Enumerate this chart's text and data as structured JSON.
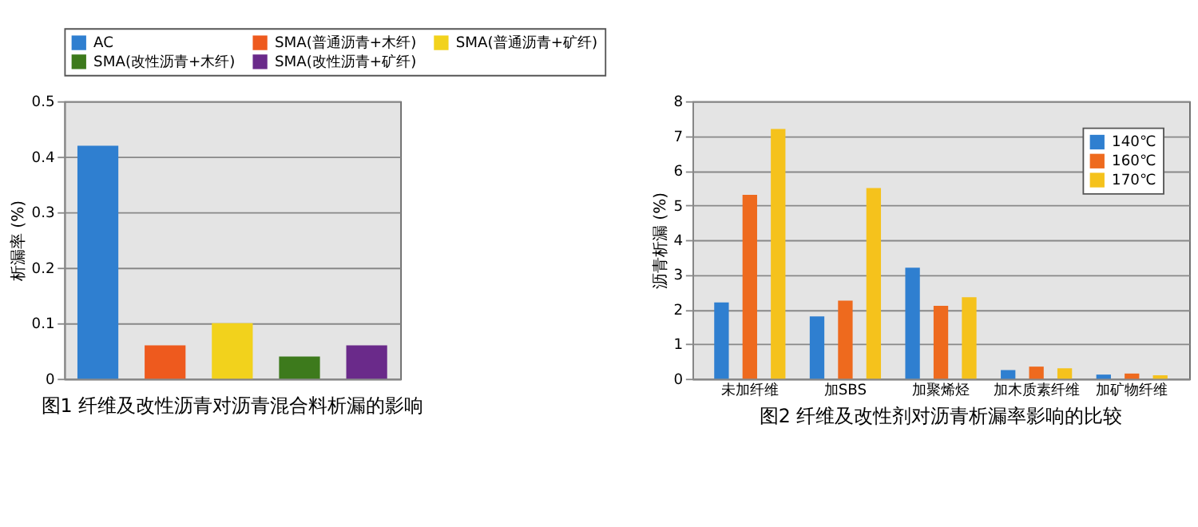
{
  "chart_data": [
    {
      "type": "bar",
      "ylabel": "析漏率 (%)",
      "categories": [
        null,
        null,
        null,
        null,
        null
      ],
      "series": [
        {
          "name": "AC",
          "color": "#2f7fd0",
          "values": [
            0.42,
            null,
            null,
            null,
            null
          ]
        },
        {
          "name": "SMA(普通沥青+木纤)",
          "color": "#ee5a1e",
          "values": [
            null,
            0.06,
            null,
            null,
            null
          ]
        },
        {
          "name": "SMA(普通沥青+矿纤)",
          "color": "#f2d21c",
          "values": [
            null,
            null,
            0.1,
            null,
            null
          ]
        },
        {
          "name": "SMA(改性沥青+木纤)",
          "color": "#3d7a1c",
          "values": [
            null,
            null,
            null,
            0.04,
            null
          ]
        },
        {
          "name": "SMA(改性沥青+矿纤)",
          "color": "#6a2a8a",
          "values": [
            null,
            null,
            null,
            null,
            0.06
          ]
        }
      ],
      "ylim": [
        0,
        0.5
      ],
      "yticks": [
        0,
        0.1,
        0.2,
        0.3,
        0.4,
        0.5
      ],
      "grid": "y",
      "legend": "top",
      "tick_labels": "y",
      "annotations": [
        "图1 纤维及改性沥青对沥青混合料析漏的影响"
      ]
    },
    {
      "type": "bar",
      "ylabel": "沥青析漏 (%)",
      "categories": [
        "未加纤维",
        "加SBS",
        "加聚烯烃",
        "加木质素纤维",
        "加矿物纤维"
      ],
      "series": [
        {
          "name": "140℃",
          "color": "#2f7fd0",
          "values": [
            2.2,
            1.8,
            3.2,
            0.25,
            0.12
          ]
        },
        {
          "name": "160℃",
          "color": "#ee6a1e",
          "values": [
            5.3,
            2.25,
            2.1,
            0.35,
            0.15
          ]
        },
        {
          "name": "170℃",
          "color": "#f5c21c",
          "values": [
            7.2,
            5.5,
            2.35,
            0.3,
            0.1
          ]
        }
      ],
      "ylim": [
        0,
        8
      ],
      "yticks": [
        0,
        1,
        2,
        3,
        4,
        5,
        6,
        7,
        8
      ],
      "grid": "y",
      "legend": "top right",
      "annotations": [
        "图2 纤维及改性剂对沥青析漏率影响的比较"
      ]
    }
  ]
}
